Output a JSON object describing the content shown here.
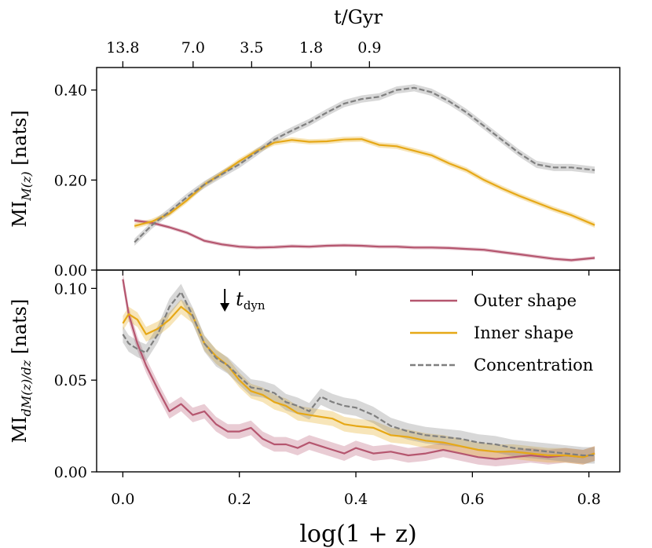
{
  "colors": {
    "outer": "#b5566f",
    "inner": "#e6a817",
    "concentration": "#7f7f7f",
    "frame": "#000000"
  },
  "chart_data": {
    "type": "line",
    "x_label": "log(1 + z)",
    "top_axis": {
      "label": "t/Gyr",
      "ticks": [
        {
          "label": "13.8",
          "x": 0.0
        },
        {
          "label": "7.0",
          "x": 0.1206
        },
        {
          "label": "3.5",
          "x": 0.2211
        },
        {
          "label": "1.8",
          "x": 0.3232
        },
        {
          "label": "0.9",
          "x": 0.4233
        }
      ]
    },
    "x_ticks": [
      0.0,
      0.2,
      0.4,
      0.6,
      0.8
    ],
    "x_tick_labels": [
      "0.0",
      "0.2",
      "0.4",
      "0.6",
      "0.8"
    ],
    "x_range": [
      -0.045,
      0.853
    ],
    "panels": [
      {
        "id": "top",
        "ylabel": "MI_M(z) [nats]",
        "ylim": [
          0.0,
          0.45
        ],
        "y_ticks": [
          0.0,
          0.2,
          0.4
        ],
        "y_tick_labels": [
          "0.00",
          "0.20",
          "0.40"
        ],
        "series": [
          {
            "name": "Outer shape",
            "color_key": "outer",
            "dash": false,
            "band": 0.004,
            "x": [
              0.02,
              0.05,
              0.08,
              0.11,
              0.14,
              0.17,
              0.2,
              0.23,
              0.26,
              0.29,
              0.32,
              0.35,
              0.38,
              0.41,
              0.44,
              0.47,
              0.5,
              0.53,
              0.56,
              0.59,
              0.62,
              0.65,
              0.68,
              0.71,
              0.74,
              0.77,
              0.81
            ],
            "y": [
              0.11,
              0.105,
              0.095,
              0.083,
              0.065,
              0.057,
              0.052,
              0.05,
              0.051,
              0.053,
              0.052,
              0.054,
              0.055,
              0.054,
              0.052,
              0.052,
              0.05,
              0.05,
              0.049,
              0.047,
              0.045,
              0.04,
              0.035,
              0.03,
              0.025,
              0.022,
              0.027
            ]
          },
          {
            "name": "Inner shape",
            "color_key": "inner",
            "dash": false,
            "band": 0.006,
            "x": [
              0.02,
              0.05,
              0.08,
              0.11,
              0.14,
              0.17,
              0.2,
              0.23,
              0.26,
              0.29,
              0.32,
              0.35,
              0.38,
              0.41,
              0.44,
              0.47,
              0.5,
              0.53,
              0.56,
              0.59,
              0.62,
              0.65,
              0.68,
              0.71,
              0.74,
              0.77,
              0.81
            ],
            "y": [
              0.098,
              0.108,
              0.125,
              0.155,
              0.19,
              0.215,
              0.242,
              0.265,
              0.283,
              0.289,
              0.285,
              0.286,
              0.29,
              0.291,
              0.278,
              0.275,
              0.265,
              0.255,
              0.237,
              0.222,
              0.2,
              0.182,
              0.165,
              0.15,
              0.135,
              0.122,
              0.1
            ]
          },
          {
            "name": "Concentration",
            "color_key": "concentration",
            "dash": true,
            "band": 0.008,
            "x": [
              0.02,
              0.05,
              0.08,
              0.11,
              0.14,
              0.17,
              0.2,
              0.23,
              0.26,
              0.29,
              0.32,
              0.35,
              0.38,
              0.41,
              0.44,
              0.47,
              0.5,
              0.53,
              0.56,
              0.59,
              0.62,
              0.65,
              0.68,
              0.71,
              0.74,
              0.77,
              0.81
            ],
            "y": [
              0.062,
              0.1,
              0.13,
              0.162,
              0.19,
              0.213,
              0.235,
              0.262,
              0.29,
              0.31,
              0.328,
              0.35,
              0.37,
              0.38,
              0.385,
              0.4,
              0.405,
              0.395,
              0.375,
              0.35,
              0.32,
              0.29,
              0.26,
              0.235,
              0.228,
              0.228,
              0.222
            ]
          }
        ]
      },
      {
        "id": "bottom",
        "ylabel": "MI_dM(z)/dz [nats]",
        "ylim": [
          0.0,
          0.11
        ],
        "y_ticks": [
          0.0,
          0.05,
          0.1
        ],
        "y_tick_labels": [
          "0.00",
          "0.05",
          "0.10"
        ],
        "annotation": {
          "text": "t",
          "subscript": "dyn",
          "x": 0.175
        },
        "series": [
          {
            "name": "Outer shape",
            "color_key": "outer",
            "dash": false,
            "band": 0.004,
            "x": [
              0.0,
              0.01,
              0.025,
              0.04,
              0.06,
              0.08,
              0.1,
              0.12,
              0.14,
              0.16,
              0.18,
              0.2,
              0.22,
              0.24,
              0.26,
              0.28,
              0.3,
              0.32,
              0.34,
              0.36,
              0.38,
              0.4,
              0.43,
              0.46,
              0.49,
              0.52,
              0.55,
              0.58,
              0.61,
              0.64,
              0.67,
              0.7,
              0.73,
              0.76,
              0.79,
              0.81
            ],
            "y": [
              0.105,
              0.086,
              0.07,
              0.058,
              0.045,
              0.033,
              0.037,
              0.031,
              0.033,
              0.026,
              0.022,
              0.022,
              0.024,
              0.018,
              0.015,
              0.015,
              0.013,
              0.016,
              0.014,
              0.012,
              0.01,
              0.013,
              0.01,
              0.011,
              0.009,
              0.01,
              0.012,
              0.01,
              0.008,
              0.007,
              0.008,
              0.009,
              0.008,
              0.009,
              0.008,
              0.01
            ]
          },
          {
            "name": "Inner shape",
            "color_key": "inner",
            "dash": false,
            "band": 0.004,
            "x": [
              0.0,
              0.01,
              0.025,
              0.04,
              0.06,
              0.08,
              0.1,
              0.12,
              0.14,
              0.16,
              0.18,
              0.2,
              0.22,
              0.24,
              0.26,
              0.28,
              0.3,
              0.32,
              0.34,
              0.36,
              0.38,
              0.4,
              0.43,
              0.46,
              0.49,
              0.52,
              0.55,
              0.58,
              0.61,
              0.64,
              0.67,
              0.7,
              0.73,
              0.76,
              0.79,
              0.81
            ],
            "y": [
              0.081,
              0.086,
              0.083,
              0.075,
              0.078,
              0.083,
              0.09,
              0.085,
              0.07,
              0.063,
              0.058,
              0.05,
              0.044,
              0.042,
              0.038,
              0.036,
              0.032,
              0.031,
              0.03,
              0.029,
              0.026,
              0.025,
              0.024,
              0.02,
              0.019,
              0.017,
              0.016,
              0.014,
              0.012,
              0.011,
              0.011,
              0.01,
              0.009,
              0.009,
              0.008,
              0.01
            ]
          },
          {
            "name": "Concentration",
            "color_key": "concentration",
            "dash": true,
            "band": 0.0045,
            "x": [
              0.0,
              0.01,
              0.025,
              0.04,
              0.06,
              0.08,
              0.1,
              0.12,
              0.14,
              0.16,
              0.18,
              0.2,
              0.22,
              0.24,
              0.26,
              0.28,
              0.3,
              0.32,
              0.34,
              0.36,
              0.38,
              0.4,
              0.43,
              0.46,
              0.49,
              0.52,
              0.55,
              0.58,
              0.61,
              0.64,
              0.67,
              0.7,
              0.73,
              0.76,
              0.79,
              0.81
            ],
            "y": [
              0.075,
              0.07,
              0.067,
              0.065,
              0.075,
              0.09,
              0.098,
              0.085,
              0.07,
              0.062,
              0.058,
              0.052,
              0.046,
              0.045,
              0.043,
              0.038,
              0.036,
              0.033,
              0.041,
              0.038,
              0.036,
              0.035,
              0.031,
              0.025,
              0.022,
              0.02,
              0.019,
              0.018,
              0.016,
              0.015,
              0.013,
              0.012,
              0.011,
              0.01,
              0.009,
              0.009
            ]
          }
        ]
      }
    ],
    "legend": {
      "placement": "lower-panel top-right",
      "entries": [
        "Outer shape",
        "Inner shape",
        "Concentration"
      ]
    }
  }
}
